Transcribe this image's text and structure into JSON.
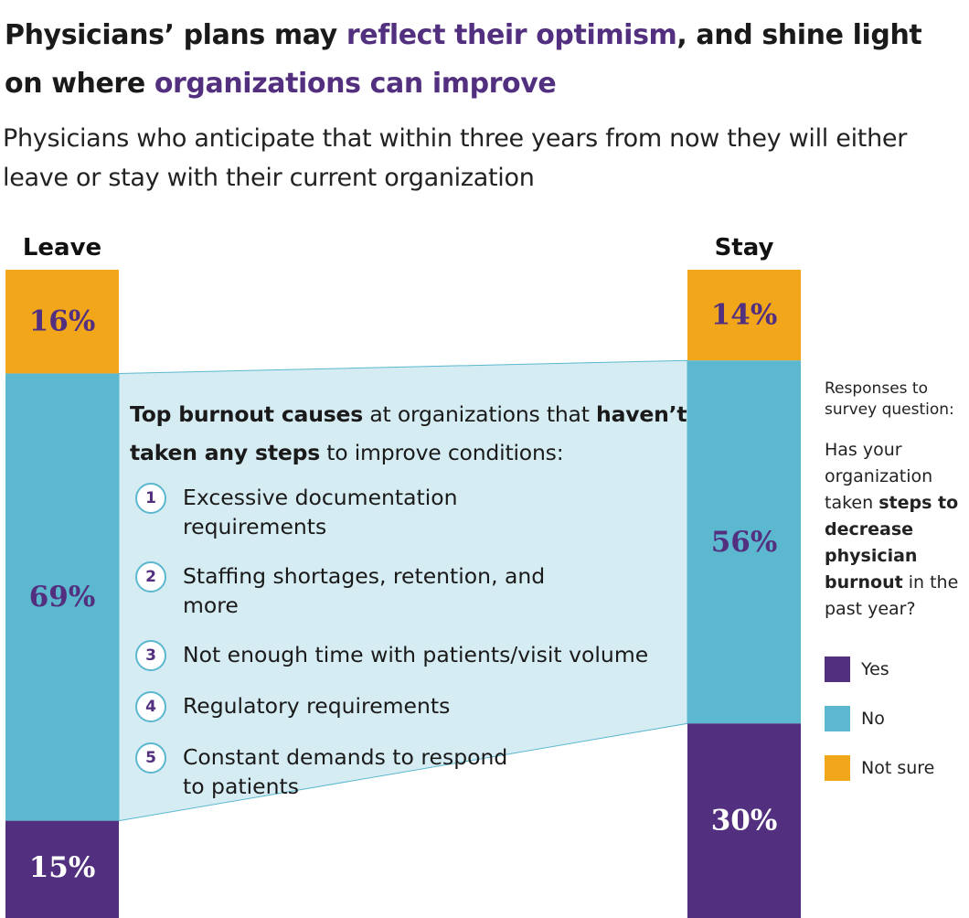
{
  "title": {
    "part1": "Physicians’ plans may ",
    "highlight1": "reflect their optimism",
    "part2": ", and shine light on where ",
    "highlight2": "organizations can improve"
  },
  "subtitle": "Physicians who anticipate that within three years from now they will either leave or stay with their current organization",
  "colors": {
    "yes": "#53307f",
    "no": "#5bb8cf",
    "not_sure": "#f2a71b",
    "connector": "#d6ecf3",
    "not_sure_text": "#53307f",
    "no_text": "#53307f",
    "yes_text": "#ffffff"
  },
  "chart_data": {
    "type": "bar",
    "stacked": true,
    "categories": [
      "Leave",
      "Stay"
    ],
    "series": [
      {
        "name": "Yes",
        "values": [
          15,
          30
        ]
      },
      {
        "name": "No",
        "values": [
          69,
          56
        ]
      },
      {
        "name": "Not sure",
        "values": [
          16,
          14
        ]
      }
    ],
    "value_labels": {
      "Leave": {
        "Not sure": "16%",
        "No": "69%",
        "Yes": "15%"
      },
      "Stay": {
        "Not sure": "14%",
        "No": "56%",
        "Yes": "30%"
      }
    },
    "unit": "%",
    "legend_position": "right"
  },
  "callout": {
    "head_bold1": "Top burnout causes",
    "head_text1": " at organizations that ",
    "head_bold2": "haven’t taken any steps",
    "head_text2": " to improve conditions:",
    "causes": [
      {
        "num": "1",
        "text": "Excessive documentation requirements"
      },
      {
        "num": "2",
        "text": "Staffing shortages, retention, and more"
      },
      {
        "num": "3",
        "text": "Not enough time with patients/visit volume"
      },
      {
        "num": "4",
        "text": "Regulatory requirements"
      },
      {
        "num": "5",
        "text": "Constant demands to respond to patients"
      }
    ]
  },
  "legend": {
    "caption": "Responses to survey question:",
    "q1": "Has your organization taken ",
    "q_bold": "steps to decrease physician burnout",
    "q2": " in the past year?",
    "items": [
      {
        "label": "Yes",
        "color_key": "yes"
      },
      {
        "label": "No",
        "color_key": "no"
      },
      {
        "label": "Not sure",
        "color_key": "not_sure"
      }
    ]
  }
}
